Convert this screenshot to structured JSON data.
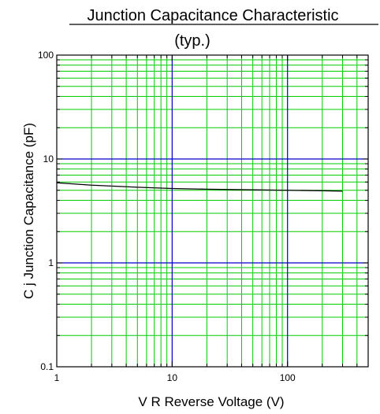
{
  "chart_data": {
    "type": "line",
    "title": "Junction Capacitance Characteristic",
    "subtitle": "(typ.)",
    "xlabel": "V R    Reverse Voltage  (V)",
    "ylabel": "C j    Junction Capacitance  (pF)",
    "x_scale": "log",
    "y_scale": "log",
    "xlim": [
      1,
      500
    ],
    "ylim": [
      0.1,
      100
    ],
    "x_tick_labels": [
      "1",
      "10",
      "100"
    ],
    "y_tick_labels": [
      "0.1",
      "1",
      "10",
      "100"
    ],
    "grid": true,
    "series": [
      {
        "x": [
          1,
          2,
          5,
          10,
          20,
          50,
          100,
          200,
          300
        ],
        "y": [
          5.9,
          5.6,
          5.35,
          5.2,
          5.12,
          5.05,
          5.0,
          4.95,
          4.9
        ],
        "color": "#000000"
      }
    ],
    "colors": {
      "minor_grid": "#00cc00",
      "major_grid": "#0000cc",
      "frame": "#000000"
    }
  }
}
